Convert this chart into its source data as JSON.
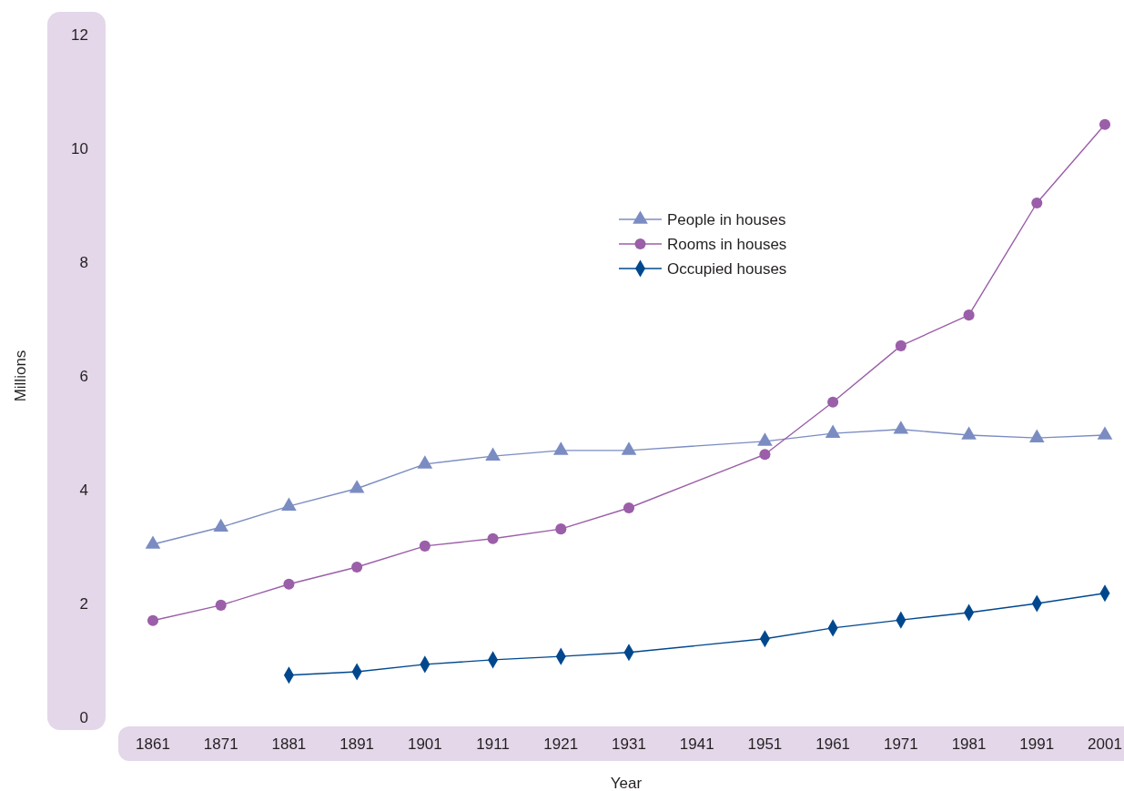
{
  "chart_data": {
    "type": "line",
    "xlabel": "Year",
    "ylabel": "Millions",
    "xlim": [
      1861,
      2001
    ],
    "xticks": [
      1861,
      1871,
      1881,
      1891,
      1901,
      1911,
      1921,
      1931,
      1941,
      1951,
      1961,
      1971,
      1981,
      1991,
      2001
    ],
    "ylim": [
      0,
      12
    ],
    "yticks": [
      0,
      2,
      4,
      6,
      8,
      10,
      12
    ],
    "legend": "top",
    "series": [
      {
        "name": "People in houses",
        "color": "#7b8cc2",
        "marker": "triangle",
        "x": [
          1861,
          1871,
          1881,
          1891,
          1901,
          1911,
          1921,
          1931,
          1951,
          1961,
          1971,
          1981,
          1991,
          2001
        ],
        "values": [
          3.04,
          3.34,
          3.71,
          4.02,
          4.45,
          4.59,
          4.69,
          4.69,
          4.85,
          4.99,
          5.06,
          4.96,
          4.91,
          4.96
        ]
      },
      {
        "name": "Rooms in houses",
        "color": "#9b5ea8",
        "marker": "circle",
        "x": [
          1861,
          1871,
          1881,
          1891,
          1901,
          1911,
          1921,
          1931,
          1951,
          1961,
          1971,
          1981,
          1991,
          2001
        ],
        "values": [
          1.7,
          1.97,
          2.34,
          2.64,
          3.01,
          3.14,
          3.31,
          3.68,
          4.62,
          5.54,
          6.53,
          7.07,
          9.04,
          10.42
        ]
      },
      {
        "name": "Occupied houses",
        "color": "#00488e",
        "marker": "diamond",
        "x": [
          1881,
          1891,
          1901,
          1911,
          1921,
          1931,
          1951,
          1961,
          1971,
          1981,
          1991,
          2001
        ],
        "values": [
          0.74,
          0.8,
          0.93,
          1.01,
          1.07,
          1.14,
          1.38,
          1.57,
          1.71,
          1.84,
          2.0,
          2.18
        ]
      }
    ]
  }
}
